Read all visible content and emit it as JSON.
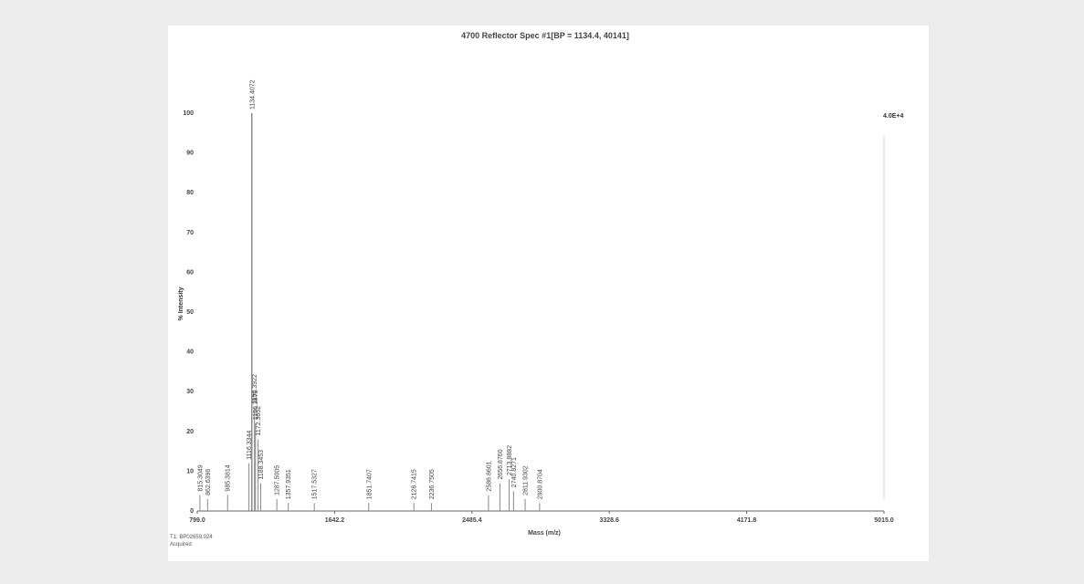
{
  "chart_data": {
    "type": "bar",
    "title": "4700 Reflector Spec #1[BP = 1134.4, 40141]",
    "xlabel": "Mass (m/z)",
    "ylabel": "% Intensity",
    "xlim": [
      799.0,
      5015.0
    ],
    "ylim": [
      0,
      100
    ],
    "x_ticks": [
      "799.0",
      "1642.2",
      "2485.4",
      "3328.6",
      "4171.8",
      "5015.0"
    ],
    "y_ticks": [
      "0",
      "10",
      "20",
      "30",
      "40",
      "50",
      "60",
      "70",
      "80",
      "90",
      "100"
    ],
    "max_intensity_label": "4.0E+4",
    "peaks": [
      {
        "mz": 815.3049,
        "intensity": 4,
        "label": "815.3049"
      },
      {
        "mz": 862.6396,
        "intensity": 3,
        "label": "862.6396"
      },
      {
        "mz": 985.3814,
        "intensity": 4,
        "label": "985.3814"
      },
      {
        "mz": 1116.3344,
        "intensity": 12,
        "label": "1116.3344"
      },
      {
        "mz": 1134.4072,
        "intensity": 100,
        "label": "1134.4072"
      },
      {
        "mz": 1150.3922,
        "intensity": 26,
        "label": "1150.3922"
      },
      {
        "mz": 1156.3879,
        "intensity": 22,
        "label": "1156.3879"
      },
      {
        "mz": 1172.3652,
        "intensity": 18,
        "label": "1172.3652"
      },
      {
        "mz": 1188.3453,
        "intensity": 7,
        "label": "1188.3453"
      },
      {
        "mz": 1287.5005,
        "intensity": 3,
        "label": "1287.5005"
      },
      {
        "mz": 1357.9351,
        "intensity": 2,
        "label": "1357.9351"
      },
      {
        "mz": 1517.5327,
        "intensity": 2,
        "label": "1517.5327"
      },
      {
        "mz": 1851.7407,
        "intensity": 2,
        "label": "1851.7407"
      },
      {
        "mz": 2128.7415,
        "intensity": 2,
        "label": "2128.7415"
      },
      {
        "mz": 2236.7505,
        "intensity": 2,
        "label": "2236.7505"
      },
      {
        "mz": 2586.8601,
        "intensity": 4,
        "label": "2586.8601"
      },
      {
        "mz": 2656.876,
        "intensity": 7,
        "label": "2656.8760"
      },
      {
        "mz": 2713.8882,
        "intensity": 8,
        "label": "2713.8882"
      },
      {
        "mz": 2740.8271,
        "intensity": 5,
        "label": "2740.8271"
      },
      {
        "mz": 2811.9302,
        "intensity": 3,
        "label": "2811.9302"
      },
      {
        "mz": 2900.8704,
        "intensity": 2,
        "label": "2900.8704"
      }
    ]
  },
  "footer": {
    "line1": "T1: BP02659.024",
    "line2": "Acquired"
  }
}
